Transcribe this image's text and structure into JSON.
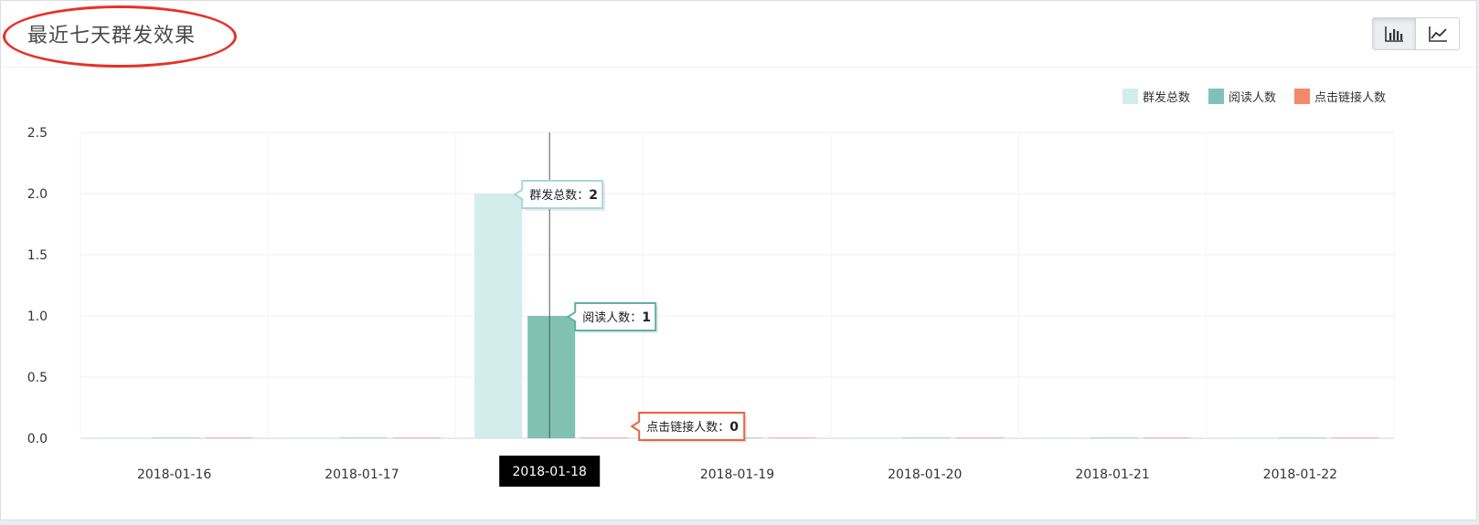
{
  "panel": {
    "title": "最近七天群发效果",
    "toggle_bar_icon": "bar-chart-icon",
    "toggle_line_icon": "line-chart-icon"
  },
  "chart_data": {
    "type": "bar",
    "categories": [
      "2018-01-16",
      "2018-01-17",
      "2018-01-18",
      "2018-01-19",
      "2018-01-20",
      "2018-01-21",
      "2018-01-22"
    ],
    "series": [
      {
        "name": "群发总数",
        "values": [
          0,
          0,
          2,
          0,
          0,
          0,
          0
        ],
        "color": "#d3ecec"
      },
      {
        "name": "阅读人数",
        "values": [
          0,
          0,
          1,
          0,
          0,
          0,
          0
        ],
        "color": "#80c1b3"
      },
      {
        "name": "点击链接人数",
        "values": [
          0,
          0,
          0,
          0,
          0,
          0,
          0
        ],
        "color": "#f3896a"
      }
    ],
    "ylim": [
      0,
      2.5
    ],
    "yticks": [
      "0.0",
      "0.5",
      "1.0",
      "1.5",
      "2.0",
      "2.5"
    ],
    "grid": true,
    "legend": "top-right",
    "highlighted_category": "2018-01-18",
    "tooltips": [
      {
        "label": "群发总数",
        "value": "2",
        "color": "#a6d8d8"
      },
      {
        "label": "阅读人数",
        "value": "1",
        "color": "#5fb1a1"
      },
      {
        "label": "点击链接人数",
        "value": "0",
        "color": "#e8633d"
      }
    ]
  }
}
